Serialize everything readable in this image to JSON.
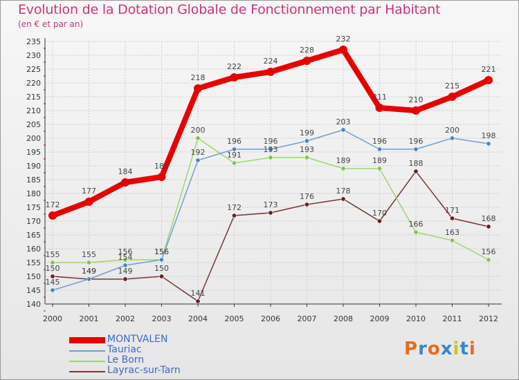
{
  "header": {
    "title": "Evolution de la Dotation Globale de Fonctionnement par Habitant",
    "subtitle": "(en € et par an)"
  },
  "logo": {
    "text": "Proxiti"
  },
  "colors": {
    "title": "#c8357a",
    "legend_text": "#3e66c8",
    "axis": "#333333",
    "grid": "#cccccc",
    "tick_red": "#cc0000"
  },
  "chart_data": {
    "type": "line",
    "title": "Evolution de la Dotation Globale de Fonctionnement par Habitant",
    "subtitle": "(en € et par an)",
    "xlabel": "",
    "ylabel": "",
    "categories": [
      "2000",
      "2001",
      "2002",
      "2003",
      "2004",
      "2005",
      "2006",
      "2007",
      "2008",
      "2009",
      "2010",
      "2011",
      "2012"
    ],
    "ylim": [
      140,
      235
    ],
    "yticks": [
      140,
      145,
      150,
      155,
      160,
      165,
      170,
      175,
      180,
      185,
      190,
      195,
      200,
      205,
      210,
      215,
      220,
      225,
      230,
      235
    ],
    "grid": true,
    "legend_position": "bottom-left",
    "series": [
      {
        "name": "MONTVALEN",
        "color": "#e60000",
        "marker_color": "#e60000",
        "emphasis": true,
        "values": [
          172,
          177,
          184,
          186,
          218,
          222,
          224,
          228,
          232,
          211,
          210,
          215,
          221
        ]
      },
      {
        "name": "Tauriac",
        "color": "#6e9fd2",
        "marker_color": "#4a86c4",
        "emphasis": false,
        "values": [
          145,
          149,
          154,
          156,
          192,
          196,
          196,
          199,
          203,
          196,
          196,
          200,
          198
        ]
      },
      {
        "name": "Le Born",
        "color": "#9ad86a",
        "marker_color": "#7cc84a",
        "emphasis": false,
        "values": [
          155,
          155,
          156,
          156,
          200,
          191,
          193,
          193,
          189,
          189,
          166,
          163,
          156
        ]
      },
      {
        "name": "Layrac-sur-Tarn",
        "color": "#7a3232",
        "marker_color": "#6a1f1f",
        "emphasis": false,
        "values": [
          150,
          149,
          149,
          150,
          141,
          172,
          173,
          176,
          178,
          170,
          188,
          171,
          168
        ]
      }
    ]
  }
}
